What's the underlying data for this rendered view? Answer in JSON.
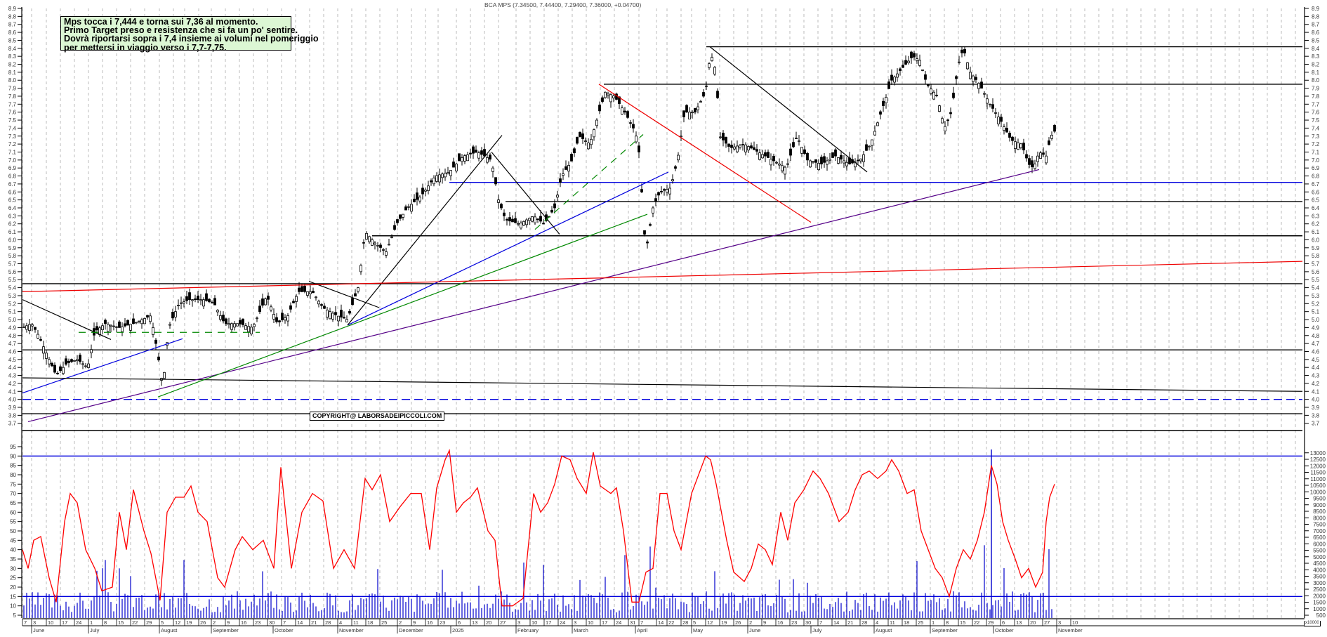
{
  "header": {
    "title": "BCA MPS (7.34500, 7.44400, 7.29400, 7.36000, +0.04700)"
  },
  "annotation": {
    "lines": [
      "Mps tocca i 7,444 e torna sui 7,36 al momento.",
      "Primo Target preso e resistenza che si fa un po' sentire.",
      "Dovrà riportarsi sopra i 7,4 insieme ai volumi nel pomeriggio",
      "per mettersi in viaggio verso i 7,7-7,75."
    ]
  },
  "watermark": "COPYRIGHT@ LABORSADEIPICCOLI.COM",
  "volume_unit_label": "x10000",
  "colors": {
    "candle": "#000000",
    "rsi_line": "#ff0000",
    "volume_bar": "#0000cc",
    "grid": "#bbbbbb",
    "note_bg": "#dcf7d4",
    "trend_blue": "#0000dd",
    "trend_green": "#008800",
    "trend_red": "#ee0000",
    "trend_purple": "#550088"
  },
  "chart_data": [
    {
      "type": "candlestick",
      "title": "BCA MPS (7.34500, 7.44400, 7.29400, 7.36000, +0.04700)",
      "last": {
        "open": 7.345,
        "high": 7.444,
        "low": 7.294,
        "close": 7.36,
        "change": 0.047
      },
      "ylim": [
        3.7,
        8.9
      ],
      "y_ticks": [
        3.7,
        3.8,
        3.9,
        4.0,
        4.1,
        4.2,
        4.3,
        4.4,
        4.5,
        4.6,
        4.7,
        4.8,
        4.9,
        5.0,
        5.1,
        5.2,
        5.3,
        5.4,
        5.5,
        5.6,
        5.7,
        5.8,
        5.9,
        6.0,
        6.1,
        6.2,
        6.3,
        6.4,
        6.5,
        6.6,
        6.7,
        6.8,
        6.9,
        7.0,
        7.1,
        7.2,
        7.3,
        7.4,
        7.5,
        7.6,
        7.7,
        7.8,
        7.9,
        8.0,
        8.1,
        8.2,
        8.3,
        8.4,
        8.5,
        8.6,
        8.7,
        8.8,
        8.9
      ],
      "horizontal_levels": [
        {
          "price": 8.42,
          "color": "#000000",
          "x_from": 1006
        },
        {
          "price": 7.95,
          "color": "#000000",
          "x_from": 860
        },
        {
          "price": 6.72,
          "color": "#0000dd",
          "x_from": 640
        },
        {
          "price": 6.48,
          "color": "#000000",
          "x_from": 720
        },
        {
          "price": 6.05,
          "color": "#000000",
          "x_from": 530
        },
        {
          "price": 5.45,
          "color": "#000000",
          "x_from": 0
        },
        {
          "price": 4.62,
          "color": "#000000",
          "x_from": 0
        },
        {
          "price": 4.0,
          "color": "#0000dd",
          "dashed": true,
          "x_from": 0
        },
        {
          "price": 3.82,
          "color": "#000000",
          "x_from": 0
        }
      ],
      "trendlines": [
        {
          "color": "#000000",
          "from": [
            32,
            5.25
          ],
          "to": [
            158,
            4.75
          ]
        },
        {
          "color": "#0000dd",
          "from": [
            32,
            4.08
          ],
          "to": [
            260,
            4.76
          ]
        },
        {
          "color": "#000000",
          "from": [
            32,
            4.27
          ],
          "to": [
            1855,
            4.1
          ]
        },
        {
          "color": "#550088",
          "from": [
            40,
            3.72
          ],
          "to": [
            1480,
            6.88
          ]
        },
        {
          "color": "#008800",
          "from": [
            225,
            4.03
          ],
          "to": [
            922,
            6.32
          ]
        },
        {
          "color": "#0000dd",
          "from": [
            495,
            4.93
          ],
          "to": [
            952,
            6.85
          ]
        },
        {
          "color": "#000000",
          "from": [
            495,
            4.93
          ],
          "to": [
            715,
            7.31
          ]
        },
        {
          "color": "#000000",
          "from": [
            440,
            5.48
          ],
          "to": [
            540,
            5.15
          ]
        },
        {
          "color": "#000000",
          "from": [
            700,
            7.1
          ],
          "to": [
            797,
            6.07
          ]
        },
        {
          "color": "#008800",
          "dashed": true,
          "from": [
            112,
            4.84
          ],
          "to": [
            370,
            4.84
          ]
        },
        {
          "color": "#008800",
          "dashed": true,
          "from": [
            762,
            6.13
          ],
          "to": [
            916,
            7.32
          ]
        },
        {
          "color": "#ee0000",
          "from": [
            32,
            5.35
          ],
          "to": [
            1855,
            5.73
          ]
        },
        {
          "color": "#ee0000",
          "from": [
            853,
            7.95
          ],
          "to": [
            1155,
            6.22
          ]
        },
        {
          "color": "#000000",
          "from": [
            1011,
            8.42
          ],
          "to": [
            1235,
            6.85
          ]
        }
      ],
      "candles_summary": "Daily candles June 2024 – late October 2025; rally from ~4.2 (Aug 2024) to 8.44 (May 2025 high), range 6.8–8.55 since, last close 7.36"
    },
    {
      "type": "line",
      "name": "RSI (red) with volume bars (blue)",
      "ylim": [
        0,
        98
      ],
      "y_ticks": [
        5,
        10,
        15,
        20,
        25,
        30,
        35,
        40,
        45,
        50,
        55,
        60,
        65,
        70,
        75,
        80,
        85,
        90,
        95
      ],
      "levels": [
        90,
        15
      ],
      "volume_axis": {
        "ticks": [
          500,
          1000,
          1500,
          2000,
          2500,
          3000,
          3500,
          4000,
          4500,
          5000,
          5500,
          6000,
          6500,
          7000,
          7500,
          8000,
          8500,
          9000,
          9500,
          10000,
          10500,
          11000,
          11500,
          12000,
          12500,
          13000
        ],
        "unit": "x10000"
      },
      "rsi_last": 75
    }
  ],
  "x_axis": {
    "day_ticks": [
      {
        "x": 32,
        "label": "7"
      },
      {
        "x": 45,
        "label": "3"
      },
      {
        "x": 66,
        "label": "10"
      },
      {
        "x": 86,
        "label": "17"
      },
      {
        "x": 106,
        "label": "24"
      },
      {
        "x": 126,
        "label": "1"
      },
      {
        "x": 146,
        "label": "8"
      },
      {
        "x": 166,
        "label": "15"
      },
      {
        "x": 186,
        "label": "22"
      },
      {
        "x": 206,
        "label": "29"
      },
      {
        "x": 227,
        "label": "5"
      },
      {
        "x": 247,
        "label": "12"
      },
      {
        "x": 263,
        "label": "19"
      },
      {
        "x": 283,
        "label": "26"
      },
      {
        "x": 301,
        "label": "2"
      },
      {
        "x": 321,
        "label": "9"
      },
      {
        "x": 341,
        "label": "16"
      },
      {
        "x": 361,
        "label": "23"
      },
      {
        "x": 381,
        "label": "30"
      },
      {
        "x": 401,
        "label": "7"
      },
      {
        "x": 421,
        "label": "14"
      },
      {
        "x": 441,
        "label": "21"
      },
      {
        "x": 461,
        "label": "28"
      },
      {
        "x": 481,
        "label": "4"
      },
      {
        "x": 501,
        "label": "11"
      },
      {
        "x": 521,
        "label": "18"
      },
      {
        "x": 541,
        "label": "25"
      },
      {
        "x": 566,
        "label": "2"
      },
      {
        "x": 586,
        "label": "9"
      },
      {
        "x": 606,
        "label": "16"
      },
      {
        "x": 624,
        "label": "23"
      },
      {
        "x": 650,
        "label": "6"
      },
      {
        "x": 670,
        "label": "13"
      },
      {
        "x": 690,
        "label": "20"
      },
      {
        "x": 710,
        "label": "27"
      },
      {
        "x": 735,
        "label": "3"
      },
      {
        "x": 755,
        "label": "10"
      },
      {
        "x": 775,
        "label": "17"
      },
      {
        "x": 795,
        "label": "24"
      },
      {
        "x": 815,
        "label": "3"
      },
      {
        "x": 835,
        "label": "10"
      },
      {
        "x": 855,
        "label": "17"
      },
      {
        "x": 875,
        "label": "24"
      },
      {
        "x": 895,
        "label": "31"
      },
      {
        "x": 910,
        "label": "7"
      },
      {
        "x": 935,
        "label": "14"
      },
      {
        "x": 950,
        "label": "22"
      },
      {
        "x": 970,
        "label": "28"
      },
      {
        "x": 985,
        "label": "5"
      },
      {
        "x": 1005,
        "label": "12"
      },
      {
        "x": 1025,
        "label": "19"
      },
      {
        "x": 1045,
        "label": "26"
      },
      {
        "x": 1065,
        "label": "2"
      },
      {
        "x": 1085,
        "label": "9"
      },
      {
        "x": 1105,
        "label": "16"
      },
      {
        "x": 1125,
        "label": "23"
      },
      {
        "x": 1145,
        "label": "30"
      },
      {
        "x": 1165,
        "label": "7"
      },
      {
        "x": 1185,
        "label": "14"
      },
      {
        "x": 1205,
        "label": "21"
      },
      {
        "x": 1225,
        "label": "28"
      },
      {
        "x": 1245,
        "label": "4"
      },
      {
        "x": 1265,
        "label": "11"
      },
      {
        "x": 1285,
        "label": "18"
      },
      {
        "x": 1305,
        "label": "25"
      },
      {
        "x": 1325,
        "label": "1"
      },
      {
        "x": 1345,
        "label": "8"
      },
      {
        "x": 1365,
        "label": "15"
      },
      {
        "x": 1385,
        "label": "22"
      },
      {
        "x": 1405,
        "label": "29"
      },
      {
        "x": 1425,
        "label": "6"
      },
      {
        "x": 1445,
        "label": "13"
      },
      {
        "x": 1465,
        "label": "20"
      },
      {
        "x": 1485,
        "label": "27"
      },
      {
        "x": 1505,
        "label": "3"
      },
      {
        "x": 1525,
        "label": "10"
      }
    ],
    "month_labels": [
      {
        "x": 45,
        "label": "June"
      },
      {
        "x": 126,
        "label": "July"
      },
      {
        "x": 227,
        "label": "August"
      },
      {
        "x": 301,
        "label": "September"
      },
      {
        "x": 389,
        "label": "October"
      },
      {
        "x": 481,
        "label": "November"
      },
      {
        "x": 566,
        "label": "December"
      },
      {
        "x": 642,
        "label": "2025"
      },
      {
        "x": 735,
        "label": "February"
      },
      {
        "x": 815,
        "label": "March"
      },
      {
        "x": 905,
        "label": "April"
      },
      {
        "x": 985,
        "label": "May"
      },
      {
        "x": 1065,
        "label": "June"
      },
      {
        "x": 1155,
        "label": "July"
      },
      {
        "x": 1245,
        "label": "August"
      },
      {
        "x": 1325,
        "label": "September"
      },
      {
        "x": 1415,
        "label": "October"
      },
      {
        "x": 1505,
        "label": "November"
      }
    ]
  }
}
